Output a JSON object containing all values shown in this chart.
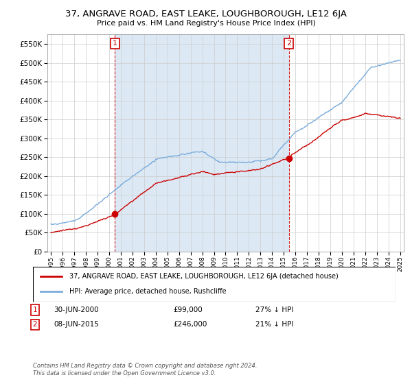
{
  "title": "37, ANGRAVE ROAD, EAST LEAKE, LOUGHBOROUGH, LE12 6JA",
  "subtitle": "Price paid vs. HM Land Registry's House Price Index (HPI)",
  "legend_property": "37, ANGRAVE ROAD, EAST LEAKE, LOUGHBOROUGH, LE12 6JA (detached house)",
  "legend_hpi": "HPI: Average price, detached house, Rushcliffe",
  "annotation1_label": "1",
  "annotation1_date": "30-JUN-2000",
  "annotation1_price": "£99,000",
  "annotation1_hpi": "27% ↓ HPI",
  "annotation2_label": "2",
  "annotation2_date": "08-JUN-2015",
  "annotation2_price": "£246,000",
  "annotation2_hpi": "21% ↓ HPI",
  "footer": "Contains HM Land Registry data © Crown copyright and database right 2024.\nThis data is licensed under the Open Government Licence v3.0.",
  "property_color": "#cc0000",
  "hpi_color": "#7aabdb",
  "vline_color": "#cc0000",
  "fill_color": "#dce9f5",
  "annotation_box_color": "#cc0000",
  "ylim": [
    0,
    575000
  ],
  "yticks": [
    0,
    50000,
    100000,
    150000,
    200000,
    250000,
    300000,
    350000,
    400000,
    450000,
    500000,
    550000
  ],
  "sale1_year": 2000.5,
  "sale1_price": 99000,
  "sale2_year": 2015.44,
  "sale2_price": 246000,
  "start_year": 1995,
  "end_year": 2025
}
